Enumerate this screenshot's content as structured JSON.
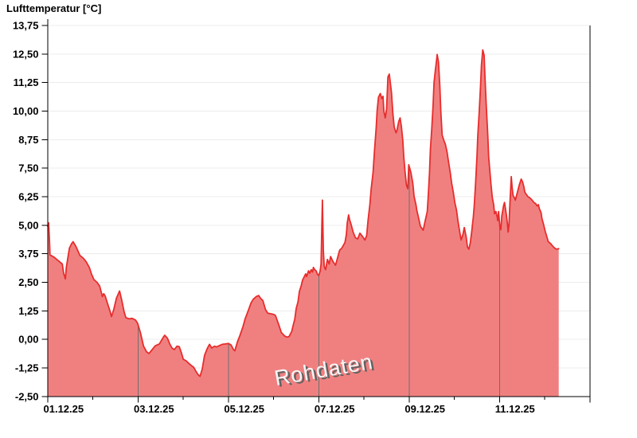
{
  "chart": {
    "title": "Lufttemperatur [°C]",
    "watermark": "Rohdaten"
  },
  "chart_data": {
    "type": "area",
    "title": "Lufttemperatur [°C]",
    "watermark_annotation": "Rohdaten",
    "legend": "none",
    "grid": {
      "horizontal": "light-gray-under-fill",
      "vertical": "dark-gray-clipped-to-fill"
    },
    "x_axis": {
      "range_days": [
        0,
        12
      ],
      "start_label": "01.12.25",
      "tick_labels": [
        "01.12.25",
        "03.12.25",
        "05.12.25",
        "07.12.25",
        "09.12.25",
        "11.12.25"
      ],
      "tick_label_days": [
        0,
        2,
        4,
        6,
        8,
        10
      ],
      "major_tick_days": [
        0,
        2,
        4,
        6,
        8,
        10,
        12
      ],
      "minor_tick_days": [
        1,
        3,
        5,
        7,
        9,
        11
      ],
      "grid_days": [
        2,
        4,
        6,
        8,
        10
      ]
    },
    "y_axis": {
      "range": [
        -2.5,
        13.75
      ],
      "tick_step": 1.25,
      "tick_labels": [
        "13,75",
        "12,50",
        "11,25",
        "10,00",
        "8,75",
        "7,50",
        "6,25",
        "5,00",
        "3,75",
        "2,50",
        "1,25",
        "0,00",
        "-1,25",
        "-2,50"
      ],
      "tick_values": [
        13.75,
        12.5,
        11.25,
        10.0,
        8.75,
        7.5,
        6.25,
        5.0,
        3.75,
        2.5,
        1.25,
        0.0,
        -1.25,
        -2.5
      ]
    },
    "colors": {
      "fill": "#f08080",
      "line": "#e82c2c",
      "h_grid": "#ececec",
      "v_grid": "#6e6e6e",
      "axis": "#000000",
      "background": "#ffffff",
      "watermark_text": "#f6f6f6",
      "watermark_shadow": "#626262"
    },
    "series": [
      {
        "name": "Rohdaten",
        "points_day_value": [
          [
            0,
            4.95
          ],
          [
            0.02,
            5.1
          ],
          [
            0.04,
            4.2
          ],
          [
            0.05,
            3.7
          ],
          [
            0.14,
            3.6
          ],
          [
            0.23,
            3.45
          ],
          [
            0.32,
            3.3
          ],
          [
            0.35,
            2.9
          ],
          [
            0.39,
            2.65
          ],
          [
            0.41,
            3.15
          ],
          [
            0.48,
            4.0
          ],
          [
            0.53,
            4.2
          ],
          [
            0.56,
            4.28
          ],
          [
            0.62,
            4.08
          ],
          [
            0.65,
            3.95
          ],
          [
            0.71,
            3.68
          ],
          [
            0.79,
            3.55
          ],
          [
            0.85,
            3.4
          ],
          [
            0.92,
            3.15
          ],
          [
            0.97,
            2.85
          ],
          [
            1.02,
            2.62
          ],
          [
            1.09,
            2.5
          ],
          [
            1.15,
            2.33
          ],
          [
            1.18,
            2.1
          ],
          [
            1.21,
            1.87
          ],
          [
            1.24,
            2.0
          ],
          [
            1.27,
            1.9
          ],
          [
            1.31,
            1.65
          ],
          [
            1.38,
            1.22
          ],
          [
            1.41,
            1.0
          ],
          [
            1.46,
            1.3
          ],
          [
            1.52,
            1.8
          ],
          [
            1.59,
            2.12
          ],
          [
            1.64,
            1.7
          ],
          [
            1.69,
            1.2
          ],
          [
            1.73,
            0.95
          ],
          [
            1.8,
            0.9
          ],
          [
            1.87,
            0.92
          ],
          [
            1.94,
            0.85
          ],
          [
            1.99,
            0.7
          ],
          [
            2.05,
            0.3
          ],
          [
            2.12,
            -0.3
          ],
          [
            2.19,
            -0.55
          ],
          [
            2.24,
            -0.62
          ],
          [
            2.29,
            -0.5
          ],
          [
            2.38,
            -0.28
          ],
          [
            2.47,
            -0.2
          ],
          [
            2.56,
            0.1
          ],
          [
            2.59,
            0.18
          ],
          [
            2.65,
            0.05
          ],
          [
            2.7,
            -0.2
          ],
          [
            2.75,
            -0.38
          ],
          [
            2.8,
            -0.45
          ],
          [
            2.86,
            -0.3
          ],
          [
            2.91,
            -0.32
          ],
          [
            2.96,
            -0.6
          ],
          [
            3.0,
            -0.87
          ],
          [
            3.07,
            -0.95
          ],
          [
            3.12,
            -1.05
          ],
          [
            3.18,
            -1.15
          ],
          [
            3.23,
            -1.22
          ],
          [
            3.28,
            -1.4
          ],
          [
            3.33,
            -1.55
          ],
          [
            3.37,
            -1.62
          ],
          [
            3.42,
            -1.3
          ],
          [
            3.47,
            -0.7
          ],
          [
            3.53,
            -0.4
          ],
          [
            3.58,
            -0.22
          ],
          [
            3.63,
            -0.38
          ],
          [
            3.69,
            -0.3
          ],
          [
            3.74,
            -0.33
          ],
          [
            3.79,
            -0.28
          ],
          [
            3.86,
            -0.22
          ],
          [
            3.93,
            -0.2
          ],
          [
            4.0,
            -0.18
          ],
          [
            4.06,
            -0.25
          ],
          [
            4.11,
            -0.45
          ],
          [
            4.14,
            -0.5
          ],
          [
            4.2,
            -0.1
          ],
          [
            4.25,
            0.15
          ],
          [
            4.32,
            0.55
          ],
          [
            4.37,
            0.9
          ],
          [
            4.44,
            1.27
          ],
          [
            4.5,
            1.6
          ],
          [
            4.55,
            1.76
          ],
          [
            4.62,
            1.88
          ],
          [
            4.67,
            1.92
          ],
          [
            4.71,
            1.8
          ],
          [
            4.76,
            1.7
          ],
          [
            4.82,
            1.3
          ],
          [
            4.87,
            1.15
          ],
          [
            4.94,
            1.12
          ],
          [
            4.99,
            1.1
          ],
          [
            5.04,
            1.05
          ],
          [
            5.12,
            0.6
          ],
          [
            5.17,
            0.3
          ],
          [
            5.24,
            0.15
          ],
          [
            5.29,
            0.1
          ],
          [
            5.34,
            0.12
          ],
          [
            5.4,
            0.35
          ],
          [
            5.43,
            0.6
          ],
          [
            5.47,
            0.9
          ],
          [
            5.5,
            1.35
          ],
          [
            5.54,
            1.65
          ],
          [
            5.57,
            2.1
          ],
          [
            5.61,
            2.35
          ],
          [
            5.64,
            2.6
          ],
          [
            5.68,
            2.75
          ],
          [
            5.71,
            2.87
          ],
          [
            5.73,
            2.75
          ],
          [
            5.77,
            3.0
          ],
          [
            5.8,
            2.9
          ],
          [
            5.83,
            3.05
          ],
          [
            5.86,
            2.95
          ],
          [
            5.88,
            3.15
          ],
          [
            5.91,
            3.05
          ],
          [
            5.94,
            3.0
          ],
          [
            5.97,
            2.85
          ],
          [
            6.0,
            2.8
          ],
          [
            6.03,
            3.0
          ],
          [
            6.05,
            3.3
          ],
          [
            6.08,
            6.1
          ],
          [
            6.1,
            3.9
          ],
          [
            6.12,
            3.2
          ],
          [
            6.15,
            3.05
          ],
          [
            6.19,
            3.5
          ],
          [
            6.23,
            3.3
          ],
          [
            6.26,
            3.63
          ],
          [
            6.31,
            3.42
          ],
          [
            6.37,
            3.25
          ],
          [
            6.42,
            3.6
          ],
          [
            6.46,
            3.9
          ],
          [
            6.51,
            4.0
          ],
          [
            6.58,
            4.25
          ],
          [
            6.61,
            4.6
          ],
          [
            6.63,
            5.1
          ],
          [
            6.66,
            5.45
          ],
          [
            6.68,
            5.25
          ],
          [
            6.72,
            5.0
          ],
          [
            6.76,
            4.7
          ],
          [
            6.81,
            4.45
          ],
          [
            6.86,
            4.4
          ],
          [
            6.91,
            4.65
          ],
          [
            6.97,
            4.5
          ],
          [
            7.02,
            4.35
          ],
          [
            7.06,
            4.55
          ],
          [
            7.09,
            5.2
          ],
          [
            7.13,
            5.9
          ],
          [
            7.16,
            6.6
          ],
          [
            7.2,
            7.3
          ],
          [
            7.23,
            8.2
          ],
          [
            7.27,
            9.3
          ],
          [
            7.29,
            10.0
          ],
          [
            7.32,
            10.6
          ],
          [
            7.36,
            10.77
          ],
          [
            7.39,
            10.55
          ],
          [
            7.42,
            10.65
          ],
          [
            7.44,
            10.0
          ],
          [
            7.47,
            9.7
          ],
          [
            7.5,
            10.1
          ],
          [
            7.53,
            11.5
          ],
          [
            7.56,
            11.62
          ],
          [
            7.58,
            11.3
          ],
          [
            7.61,
            10.8
          ],
          [
            7.64,
            9.9
          ],
          [
            7.67,
            9.3
          ],
          [
            7.71,
            9.05
          ],
          [
            7.73,
            9.15
          ],
          [
            7.77,
            9.55
          ],
          [
            7.8,
            9.7
          ],
          [
            7.83,
            9.3
          ],
          [
            7.86,
            8.7
          ],
          [
            7.88,
            8.0
          ],
          [
            7.91,
            7.3
          ],
          [
            7.94,
            6.75
          ],
          [
            7.97,
            6.6
          ],
          [
            7.99,
            7.65
          ],
          [
            8.02,
            7.45
          ],
          [
            8.04,
            7.3
          ],
          [
            8.08,
            6.85
          ],
          [
            8.11,
            6.25
          ],
          [
            8.15,
            5.9
          ],
          [
            8.17,
            5.65
          ],
          [
            8.21,
            5.3
          ],
          [
            8.25,
            4.95
          ],
          [
            8.31,
            4.78
          ],
          [
            8.35,
            5.15
          ],
          [
            8.4,
            5.6
          ],
          [
            8.42,
            6.2
          ],
          [
            8.45,
            7.3
          ],
          [
            8.47,
            8.3
          ],
          [
            8.5,
            9.2
          ],
          [
            8.53,
            10.25
          ],
          [
            8.55,
            11.25
          ],
          [
            8.58,
            11.8
          ],
          [
            8.61,
            12.3
          ],
          [
            8.62,
            12.48
          ],
          [
            8.65,
            12.15
          ],
          [
            8.68,
            11.1
          ],
          [
            8.7,
            10.0
          ],
          [
            8.73,
            8.95
          ],
          [
            8.77,
            8.7
          ],
          [
            8.8,
            8.55
          ],
          [
            8.84,
            8.2
          ],
          [
            8.87,
            7.8
          ],
          [
            8.91,
            7.3
          ],
          [
            8.94,
            6.85
          ],
          [
            8.98,
            6.4
          ],
          [
            9.01,
            6.0
          ],
          [
            9.05,
            5.65
          ],
          [
            9.08,
            5.2
          ],
          [
            9.12,
            4.7
          ],
          [
            9.15,
            4.35
          ],
          [
            9.19,
            4.6
          ],
          [
            9.22,
            4.9
          ],
          [
            9.26,
            4.5
          ],
          [
            9.29,
            4.05
          ],
          [
            9.32,
            3.95
          ],
          [
            9.35,
            4.2
          ],
          [
            9.38,
            4.65
          ],
          [
            9.42,
            5.35
          ],
          [
            9.44,
            5.85
          ],
          [
            9.47,
            6.85
          ],
          [
            9.5,
            8.0
          ],
          [
            9.52,
            8.95
          ],
          [
            9.55,
            9.95
          ],
          [
            9.58,
            11.1
          ],
          [
            9.6,
            12.0
          ],
          [
            9.63,
            12.68
          ],
          [
            9.66,
            12.45
          ],
          [
            9.68,
            11.4
          ],
          [
            9.71,
            10.1
          ],
          [
            9.74,
            8.95
          ],
          [
            9.76,
            8.0
          ],
          [
            9.79,
            7.3
          ],
          [
            9.81,
            6.8
          ],
          [
            9.84,
            6.2
          ],
          [
            9.87,
            5.9
          ],
          [
            9.89,
            5.5
          ],
          [
            9.92,
            5.6
          ],
          [
            9.95,
            5.35
          ],
          [
            9.96,
            5.2
          ],
          [
            9.98,
            5.6
          ],
          [
            10.01,
            4.87
          ],
          [
            10.03,
            4.8
          ],
          [
            10.05,
            5.4
          ],
          [
            10.09,
            5.85
          ],
          [
            10.11,
            6.0
          ],
          [
            10.15,
            5.5
          ],
          [
            10.18,
            5.0
          ],
          [
            10.19,
            4.7
          ],
          [
            10.21,
            5.0
          ],
          [
            10.23,
            5.95
          ],
          [
            10.26,
            7.13
          ],
          [
            10.28,
            6.65
          ],
          [
            10.3,
            6.3
          ],
          [
            10.33,
            6.2
          ],
          [
            10.35,
            6.1
          ],
          [
            10.38,
            6.32
          ],
          [
            10.41,
            6.55
          ],
          [
            10.44,
            6.78
          ],
          [
            10.48,
            7.02
          ],
          [
            10.51,
            6.9
          ],
          [
            10.54,
            6.67
          ],
          [
            10.56,
            6.45
          ],
          [
            10.6,
            6.33
          ],
          [
            10.63,
            6.25
          ],
          [
            10.67,
            6.2
          ],
          [
            10.72,
            6.1
          ],
          [
            10.76,
            6.0
          ],
          [
            10.8,
            5.95
          ],
          [
            10.83,
            5.85
          ],
          [
            10.86,
            5.9
          ],
          [
            10.88,
            5.73
          ],
          [
            10.92,
            5.55
          ],
          [
            10.94,
            5.28
          ],
          [
            10.98,
            5.0
          ],
          [
            11.01,
            4.75
          ],
          [
            11.05,
            4.48
          ],
          [
            11.08,
            4.28
          ],
          [
            11.13,
            4.2
          ],
          [
            11.17,
            4.1
          ],
          [
            11.22,
            4.0
          ],
          [
            11.26,
            3.95
          ],
          [
            11.31,
            3.97
          ]
        ]
      }
    ]
  }
}
